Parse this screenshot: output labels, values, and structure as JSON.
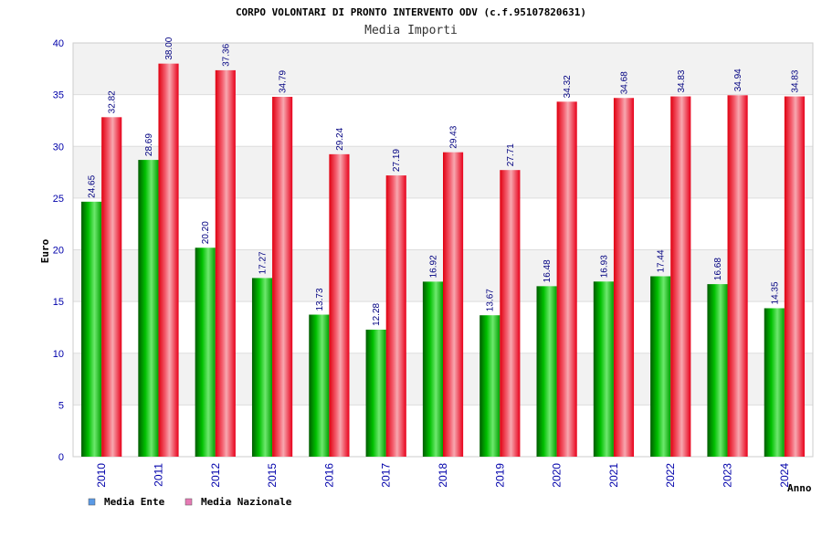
{
  "chart_data": {
    "type": "bar",
    "title": "CORPO VOLONTARI DI PRONTO INTERVENTO ODV (c.f.95107820631)",
    "subtitle": "Media Importi",
    "xlabel": "Anno",
    "ylabel": "Euro",
    "ylim": [
      0,
      40
    ],
    "yticks": [
      "0",
      "5",
      "10",
      "15",
      "20",
      "25",
      "30",
      "35",
      "40"
    ],
    "categories": [
      "2010",
      "2011",
      "2012",
      "2015",
      "2016",
      "2017",
      "2018",
      "2019",
      "2020",
      "2021",
      "2022",
      "2023",
      "2024"
    ],
    "series": [
      {
        "name": "Media Ente",
        "values": [
          24.65,
          28.69,
          20.2,
          17.27,
          13.73,
          12.28,
          16.92,
          13.67,
          16.48,
          16.93,
          17.44,
          16.68,
          14.35
        ],
        "labels": [
          "24.65",
          "28.69",
          "20.20",
          "17.27",
          "13.73",
          "12.28",
          "16.92",
          "13.67",
          "16.48",
          "16.93",
          "17.44",
          "16.68",
          "14.35"
        ],
        "color": "#00b000"
      },
      {
        "name": "Media Nazionale",
        "values": [
          32.82,
          38.0,
          37.36,
          34.79,
          29.24,
          27.19,
          29.43,
          27.71,
          34.32,
          34.68,
          34.83,
          34.94,
          34.83
        ],
        "labels": [
          "32.82",
          "38.00",
          "37.36",
          "34.79",
          "29.24",
          "27.19",
          "29.43",
          "27.71",
          "34.32",
          "34.68",
          "34.83",
          "34.94",
          "34.83"
        ],
        "color": "#e00010"
      }
    ],
    "grid": true,
    "legend_position": "bottom-left",
    "legend_swatch_colors": [
      "#5a9ae6",
      "#e67ab4"
    ]
  }
}
